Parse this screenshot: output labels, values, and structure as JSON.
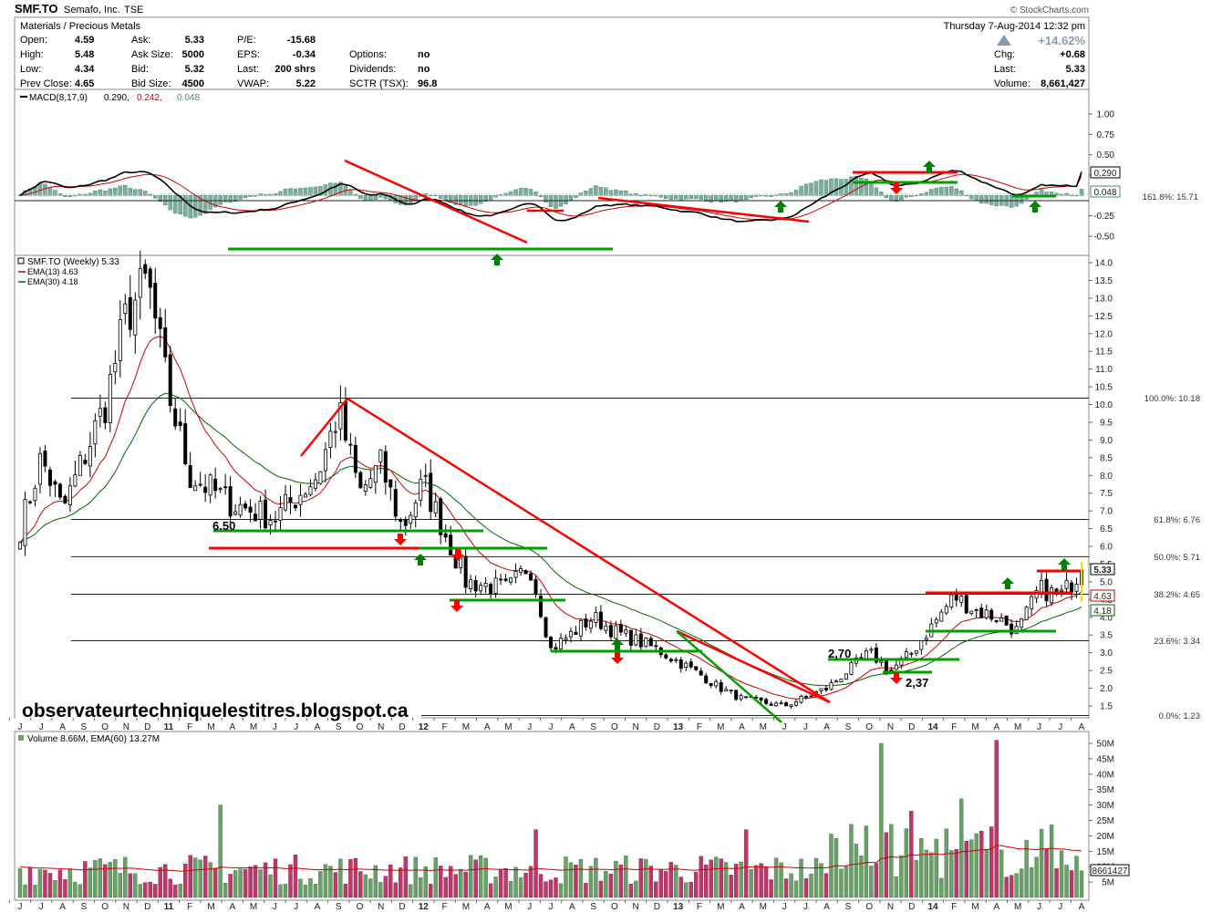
{
  "header": {
    "symbol": "SMF.TO",
    "company": "Semafo, Inc.",
    "exchange": "TSE",
    "copyright": "© StockCharts.com",
    "sector": "Materials / Precious Metals",
    "datetime": "Thursday  7-Aug-2014  12:32 pm",
    "pct_change": "+14.62%",
    "rows": [
      [
        "Open:",
        "4.59",
        "Ask:",
        "5.33",
        "P/E:",
        "-15.68",
        "",
        ""
      ],
      [
        "High:",
        "5.48",
        "Ask Size:",
        "5000",
        "EPS:",
        "-0.34",
        "Options:",
        "no"
      ],
      [
        "Low:",
        "4.34",
        "Bid:",
        "5.32",
        "Last:",
        "200 shrs",
        "Dividends:",
        "no"
      ],
      [
        "Prev Close:",
        "4.65",
        "Bid Size:",
        "4500",
        "VWAP:",
        "5.22",
        "SCTR (TSX):",
        "96.8"
      ]
    ],
    "right_rows": [
      [
        "Chg:",
        "+0.68"
      ],
      [
        "Last:",
        "5.33"
      ],
      [
        "Volume:",
        "8,661,427"
      ]
    ]
  },
  "macd_panel": {
    "legend_name": "MACD(8,17,9)",
    "legend_values": [
      "0.290,",
      "0.242,",
      "0.048"
    ],
    "legend_colors": [
      "#000000",
      "#cc0000",
      "#4a8a7a"
    ],
    "y_ticks": [
      "1.00",
      "0.75",
      "0.50",
      "0.25",
      "-0.25",
      "-0.50"
    ],
    "labels": [
      "0.290",
      "0.048"
    ],
    "fib_label": "161.8%: 15.71"
  },
  "price_panel": {
    "legend_title": "SMF.TO (Weekly) 5.33",
    "ema13": "EMA(13) 4.63",
    "ema30": "EMA(30) 4.18",
    "y_ticks": [
      "14.0",
      "13.5",
      "13.0",
      "12.5",
      "12.0",
      "11.5",
      "11.0",
      "10.5",
      "10.0",
      "9.5",
      "9.0",
      "8.5",
      "8.0",
      "7.5",
      "7.0",
      "6.5",
      "6.0",
      "5.5",
      "5.0",
      "4.5",
      "4.0",
      "3.5",
      "3.0",
      "2.5",
      "2.0",
      "1.5"
    ],
    "price_labels": [
      "5.33",
      "4.63",
      "4.18"
    ],
    "fib_levels": [
      {
        "label": "100.0%: 10.18",
        "value": 10.18
      },
      {
        "label": "61.8%: 6.76",
        "value": 6.76
      },
      {
        "label": "50.0%: 5.71",
        "value": 5.71
      },
      {
        "label": "38.2%: 4.65",
        "value": 4.65
      },
      {
        "label": "23.6%: 3.34",
        "value": 3.34
      },
      {
        "label": "0.0%: 1.23",
        "value": 1.23
      }
    ],
    "annotations": [
      "6.50",
      "2,70",
      "2,37"
    ],
    "watermark": "observateurtechniquelestitres.blogspot.ca"
  },
  "volume_panel": {
    "legend": "Volume 8.66M, EMA(60) 13.27M",
    "y_ticks": [
      "50M",
      "45M",
      "40M",
      "35M",
      "30M",
      "25M",
      "20M",
      "15M",
      "10M",
      "5M"
    ],
    "last_label": "8661427"
  },
  "x_axis": [
    "J",
    "J",
    "A",
    "S",
    "O",
    "N",
    "D",
    "11",
    "F",
    "M",
    "A",
    "M",
    "J",
    "J",
    "A",
    "S",
    "O",
    "N",
    "D",
    "12",
    "F",
    "M",
    "A",
    "M",
    "J",
    "J",
    "A",
    "S",
    "O",
    "N",
    "D",
    "13",
    "F",
    "M",
    "A",
    "M",
    "J",
    "J",
    "A",
    "S",
    "O",
    "N",
    "D",
    "14",
    "F",
    "M",
    "A",
    "M",
    "J",
    "J",
    "A"
  ],
  "chart_data": {
    "type": "candlestick",
    "title": "SMF.TO (Weekly) 5.33",
    "period": "weekly",
    "x_range": [
      "Jun 2010",
      "Aug 2014"
    ],
    "price_ylim": [
      1.3,
      14.2
    ],
    "price_points": [
      {
        "date": "2010-06",
        "close": 6.5
      },
      {
        "date": "2010-07",
        "close": 8.5
      },
      {
        "date": "2010-08",
        "close": 7.0
      },
      {
        "date": "2010-09",
        "close": 8.5
      },
      {
        "date": "2010-10",
        "close": 10.0
      },
      {
        "date": "2010-11",
        "close": 12.5
      },
      {
        "date": "2010-12",
        "close": 13.5
      },
      {
        "date": "2011-01",
        "close": 10.3
      },
      {
        "date": "2011-02",
        "close": 8.0
      },
      {
        "date": "2011-04",
        "close": 7.2
      },
      {
        "date": "2011-06",
        "close": 6.8
      },
      {
        "date": "2011-08",
        "close": 8.0
      },
      {
        "date": "2011-09",
        "close": 9.8
      },
      {
        "date": "2011-10",
        "close": 7.5
      },
      {
        "date": "2011-11",
        "close": 8.3
      },
      {
        "date": "2011-12",
        "close": 6.5
      },
      {
        "date": "2012-01",
        "close": 7.8
      },
      {
        "date": "2012-02",
        "close": 6.4
      },
      {
        "date": "2012-03",
        "close": 5.0
      },
      {
        "date": "2012-05",
        "close": 4.8
      },
      {
        "date": "2012-06",
        "close": 5.5
      },
      {
        "date": "2012-07",
        "close": 3.1
      },
      {
        "date": "2012-09",
        "close": 4.0
      },
      {
        "date": "2012-10",
        "close": 3.6
      },
      {
        "date": "2012-12",
        "close": 3.1
      },
      {
        "date": "2013-02",
        "close": 2.4
      },
      {
        "date": "2013-03",
        "close": 2.0
      },
      {
        "date": "2013-04",
        "close": 1.7
      },
      {
        "date": "2013-06",
        "close": 1.5
      },
      {
        "date": "2013-08",
        "close": 2.0
      },
      {
        "date": "2013-09",
        "close": 2.5
      },
      {
        "date": "2013-10",
        "close": 3.0
      },
      {
        "date": "2013-11",
        "close": 2.5
      },
      {
        "date": "2013-12",
        "close": 3.0
      },
      {
        "date": "2014-01",
        "close": 3.8
      },
      {
        "date": "2014-02",
        "close": 4.6
      },
      {
        "date": "2014-03",
        "close": 4.2
      },
      {
        "date": "2014-04",
        "close": 4.0
      },
      {
        "date": "2014-05",
        "close": 3.6
      },
      {
        "date": "2014-06",
        "close": 4.8
      },
      {
        "date": "2014-07",
        "close": 4.6
      },
      {
        "date": "2014-08",
        "close": 5.33
      }
    ],
    "series": [
      {
        "name": "EMA(13)",
        "last": 4.63,
        "color": "#cc0000"
      },
      {
        "name": "EMA(30)",
        "last": 4.18,
        "color": "#006600"
      }
    ],
    "macd": {
      "params": "8,17,9",
      "macd": 0.29,
      "signal": 0.242,
      "histogram": 0.048,
      "ylim": [
        -0.6,
        1.1
      ]
    },
    "volume": {
      "last": 8661427,
      "ema60": "13.27M",
      "ylim_millions": [
        0,
        52
      ]
    },
    "colors": {
      "up": "#ffffff",
      "down": "#000000",
      "volume_up": "#6aa06a",
      "volume_down": "#c0386a",
      "trend_red": "#ff0000",
      "support_green": "#00a000",
      "arrow_green": "#008000",
      "arrow_red": "#ff0000"
    }
  }
}
